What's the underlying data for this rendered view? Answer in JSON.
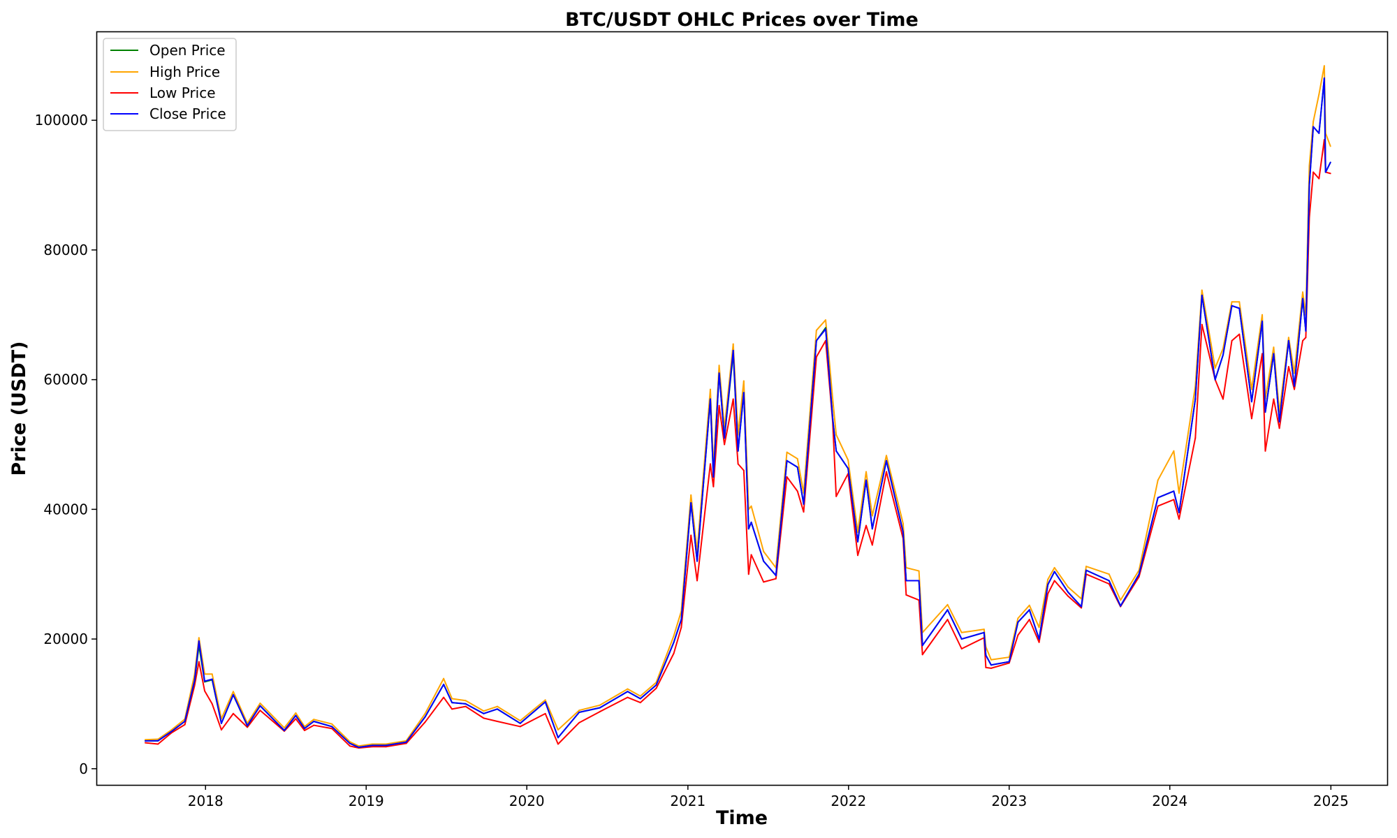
{
  "chart_data": {
    "type": "line",
    "title": "BTC/USDT OHLC Prices over Time",
    "xlabel": "Time",
    "ylabel": "Price (USDT)",
    "xlim": [
      "2017-04-28",
      "2025-05-09"
    ],
    "ylim": [
      -2500,
      113700
    ],
    "x_ticks": [
      {
        "date": "2018-01-01",
        "label": "2018"
      },
      {
        "date": "2019-01-01",
        "label": "2019"
      },
      {
        "date": "2020-01-01",
        "label": "2020"
      },
      {
        "date": "2021-01-01",
        "label": "2021"
      },
      {
        "date": "2022-01-01",
        "label": "2022"
      },
      {
        "date": "2023-01-01",
        "label": "2023"
      },
      {
        "date": "2024-01-01",
        "label": "2024"
      },
      {
        "date": "2025-01-01",
        "label": "2025"
      }
    ],
    "y_ticks": [
      {
        "value": 0,
        "label": "0"
      },
      {
        "value": 20000,
        "label": "20000"
      },
      {
        "value": 40000,
        "label": "40000"
      },
      {
        "value": 60000,
        "label": "60000"
      },
      {
        "value": 80000,
        "label": "80000"
      },
      {
        "value": 100000,
        "label": "100000"
      }
    ],
    "grid": false,
    "legend_position": "top-left",
    "x": [
      "2017-08-17",
      "2017-09-15",
      "2017-10-15",
      "2017-11-15",
      "2017-12-07",
      "2017-12-17",
      "2017-12-30",
      "2018-01-16",
      "2018-02-06",
      "2018-03-05",
      "2018-04-06",
      "2018-05-05",
      "2018-06-29",
      "2018-07-25",
      "2018-08-14",
      "2018-09-04",
      "2018-10-15",
      "2018-11-25",
      "2018-12-15",
      "2019-01-15",
      "2019-02-15",
      "2019-04-02",
      "2019-05-15",
      "2019-06-26",
      "2019-07-15",
      "2019-08-15",
      "2019-09-25",
      "2019-10-26",
      "2019-12-17",
      "2020-02-12",
      "2020-03-12",
      "2020-04-29",
      "2020-06-15",
      "2020-08-17",
      "2020-09-15",
      "2020-10-21",
      "2020-11-30",
      "2020-12-17",
      "2021-01-08",
      "2021-01-22",
      "2021-02-21",
      "2021-02-28",
      "2021-03-13",
      "2021-03-25",
      "2021-04-14",
      "2021-04-25",
      "2021-05-08",
      "2021-05-19",
      "2021-05-25",
      "2021-06-22",
      "2021-07-20",
      "2021-08-14",
      "2021-09-07",
      "2021-09-21",
      "2021-10-20",
      "2021-11-10",
      "2021-11-26",
      "2021-12-04",
      "2021-12-31",
      "2022-01-22",
      "2022-02-10",
      "2022-02-24",
      "2022-03-28",
      "2022-05-05",
      "2022-05-12",
      "2022-06-10",
      "2022-06-18",
      "2022-08-14",
      "2022-09-15",
      "2022-11-05",
      "2022-11-09",
      "2022-11-21",
      "2023-01-01",
      "2023-01-21",
      "2023-02-16",
      "2023-03-10",
      "2023-03-30",
      "2023-04-14",
      "2023-05-15",
      "2023-06-14",
      "2023-06-25",
      "2023-08-16",
      "2023-09-11",
      "2023-10-23",
      "2023-12-05",
      "2024-01-10",
      "2024-01-22",
      "2024-02-28",
      "2024-03-14",
      "2024-04-13",
      "2024-05-01",
      "2024-05-21",
      "2024-06-07",
      "2024-07-05",
      "2024-07-29",
      "2024-08-05",
      "2024-08-24",
      "2024-09-06",
      "2024-09-27",
      "2024-10-10",
      "2024-10-29",
      "2024-11-05",
      "2024-11-13",
      "2024-11-22",
      "2024-12-05",
      "2024-12-17",
      "2024-12-20",
      "2024-12-31"
    ],
    "series": [
      {
        "name": "Open Price",
        "color": "#008000",
        "width": 2,
        "values": [
          4280,
          4300,
          5700,
          7300,
          13500,
          19000,
          13400,
          13700,
          7000,
          11400,
          6600,
          9700,
          5900,
          8200,
          6200,
          7300,
          6500,
          3900,
          3300,
          3600,
          3600,
          4100,
          8000,
          13000,
          10200,
          10000,
          8500,
          9200,
          7000,
          10300,
          4800,
          8700,
          9400,
          11900,
          10800,
          12900,
          19500,
          23000,
          41000,
          32000,
          57000,
          45000,
          61000,
          51000,
          64000,
          49000,
          58000,
          37000,
          38000,
          32000,
          29800,
          47500,
          46500,
          40800,
          66000,
          68000,
          54000,
          49000,
          46300,
          35000,
          44500,
          37000,
          47500,
          36500,
          29000,
          29000,
          19000,
          24500,
          20000,
          21000,
          17500,
          16000,
          16500,
          22600,
          24500,
          20000,
          28400,
          30400,
          27200,
          25000,
          30600,
          29000,
          25100,
          30000,
          41800,
          42800,
          39500,
          57000,
          73000,
          60000,
          63800,
          71400,
          71000,
          56600,
          69000,
          55000,
          64000,
          53500,
          66000,
          59000,
          72500,
          67500,
          90000,
          99000,
          98000,
          106500,
          92000,
          93500
        ]
      },
      {
        "name": "High Price",
        "color": "#ffa500",
        "width": 2,
        "values": [
          4480,
          4550,
          5950,
          7650,
          14500,
          20200,
          14600,
          14600,
          7700,
          11900,
          7000,
          10100,
          6300,
          8600,
          6500,
          7600,
          6900,
          4150,
          3500,
          3800,
          3800,
          4300,
          8500,
          13900,
          10800,
          10500,
          8900,
          9600,
          7400,
          10600,
          6000,
          9000,
          9800,
          12300,
          11200,
          13300,
          20500,
          24300,
          42200,
          33500,
          58500,
          46500,
          62200,
          52500,
          65500,
          51500,
          59800,
          40000,
          40500,
          33500,
          31000,
          48800,
          47800,
          42500,
          67600,
          69200,
          57000,
          51500,
          47600,
          36500,
          45800,
          39000,
          48300,
          37800,
          31000,
          30500,
          21000,
          25300,
          21000,
          21500,
          18800,
          16800,
          17200,
          23200,
          25200,
          21800,
          29200,
          31000,
          28000,
          26200,
          31200,
          30000,
          26000,
          30600,
          44500,
          49000,
          42500,
          59000,
          73800,
          61800,
          64800,
          72000,
          72000,
          58500,
          70000,
          57000,
          65000,
          55000,
          66500,
          61000,
          73500,
          70000,
          93000,
          99800,
          104000,
          108400,
          98000,
          96000
        ]
      },
      {
        "name": "Low Price",
        "color": "#ff0000",
        "width": 2,
        "values": [
          4000,
          3800,
          5500,
          6800,
          12800,
          16500,
          12000,
          10000,
          6000,
          8500,
          6400,
          9000,
          5800,
          7700,
          5900,
          6700,
          6200,
          3500,
          3200,
          3400,
          3400,
          3900,
          7200,
          11000,
          9200,
          9600,
          7800,
          7300,
          6500,
          8500,
          3800,
          7100,
          8800,
          11000,
          10200,
          12400,
          17800,
          21800,
          36000,
          29000,
          47000,
          43500,
          56000,
          50000,
          57000,
          47000,
          46000,
          30000,
          33000,
          28800,
          29300,
          45000,
          42800,
          39600,
          63500,
          66000,
          53500,
          42000,
          45500,
          32900,
          37500,
          34500,
          45800,
          35500,
          26800,
          26000,
          17600,
          23000,
          18500,
          20200,
          15600,
          15500,
          16300,
          20600,
          23000,
          19500,
          27000,
          29000,
          26600,
          24800,
          30000,
          28500,
          25000,
          29600,
          40500,
          41500,
          38500,
          51000,
          68500,
          60000,
          57000,
          66000,
          67000,
          54000,
          64000,
          49000,
          57000,
          52500,
          62000,
          58500,
          66000,
          66500,
          85000,
          92000,
          91000,
          97000,
          92000,
          91800
        ]
      },
      {
        "name": "Close Price",
        "color": "#0000ff",
        "width": 2,
        "values": [
          4285,
          4310,
          5710,
          7320,
          13600,
          19700,
          13500,
          13800,
          7000,
          11400,
          6650,
          9700,
          5900,
          8200,
          6200,
          7300,
          6500,
          3900,
          3300,
          3600,
          3600,
          4100,
          8000,
          13000,
          10200,
          10000,
          8500,
          9200,
          7000,
          10300,
          4800,
          8700,
          9400,
          11900,
          10800,
          12900,
          19500,
          23000,
          41000,
          32000,
          57000,
          45000,
          61000,
          51000,
          64500,
          49000,
          58000,
          37000,
          38000,
          32000,
          29800,
          47500,
          46500,
          40800,
          66000,
          67800,
          54000,
          49000,
          46300,
          35000,
          44500,
          37000,
          47500,
          36500,
          29000,
          29000,
          19000,
          24500,
          20000,
          21000,
          17500,
          16000,
          16500,
          22600,
          24500,
          20000,
          28400,
          30400,
          27200,
          25000,
          30600,
          29000,
          25100,
          30000,
          41800,
          42800,
          39500,
          57000,
          73000,
          60000,
          63800,
          71400,
          71000,
          56600,
          69000,
          55000,
          64000,
          53500,
          66000,
          59000,
          72500,
          67500,
          90000,
          99000,
          98000,
          106500,
          92000,
          93500
        ]
      }
    ]
  }
}
